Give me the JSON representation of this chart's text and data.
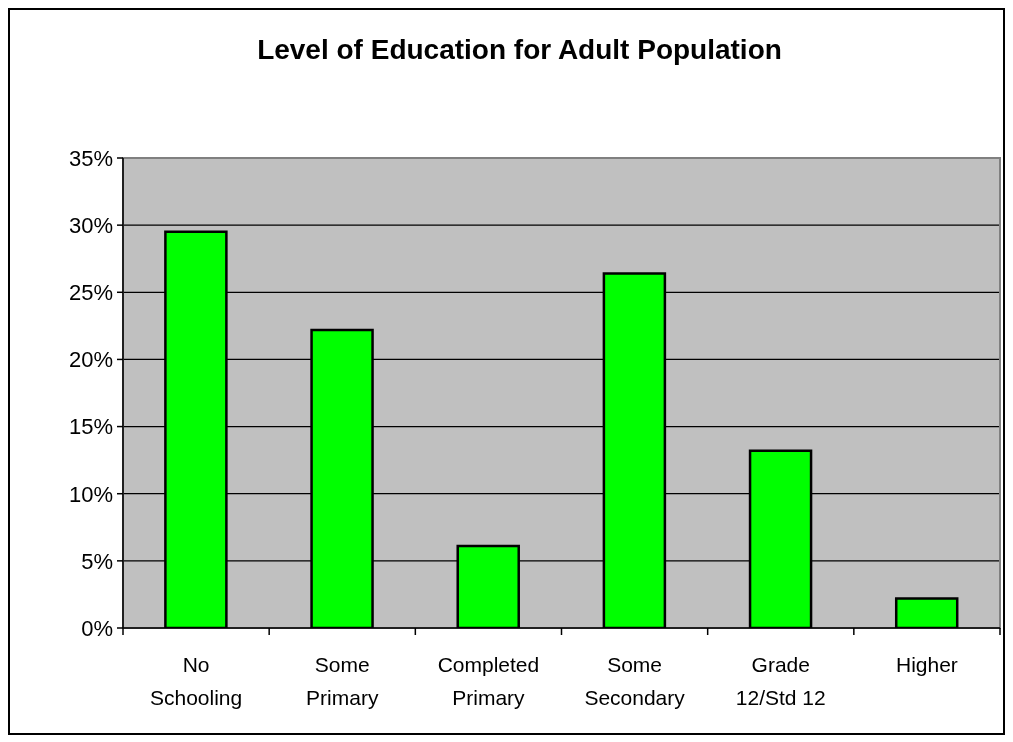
{
  "chart_data": {
    "type": "bar",
    "title": "Level of Education for Adult Population",
    "categories": [
      "No Schooling",
      "Some Primary",
      "Completed Primary",
      "Some Secondary",
      "Grade 12/Std 12",
      "Higher"
    ],
    "values": [
      29.5,
      22.2,
      6.1,
      26.4,
      13.2,
      2.2
    ],
    "color": "#00ff00",
    "ylim": [
      0,
      35
    ],
    "yticks": [
      {
        "value": 0,
        "label": "0%"
      },
      {
        "value": 5,
        "label": "5%"
      },
      {
        "value": 10,
        "label": "10%"
      },
      {
        "value": 15,
        "label": "15%"
      },
      {
        "value": 20,
        "label": "20%"
      },
      {
        "value": 25,
        "label": "25%"
      },
      {
        "value": 30,
        "label": "30%"
      },
      {
        "value": 35,
        "label": "35%"
      }
    ],
    "grid": "y"
  }
}
